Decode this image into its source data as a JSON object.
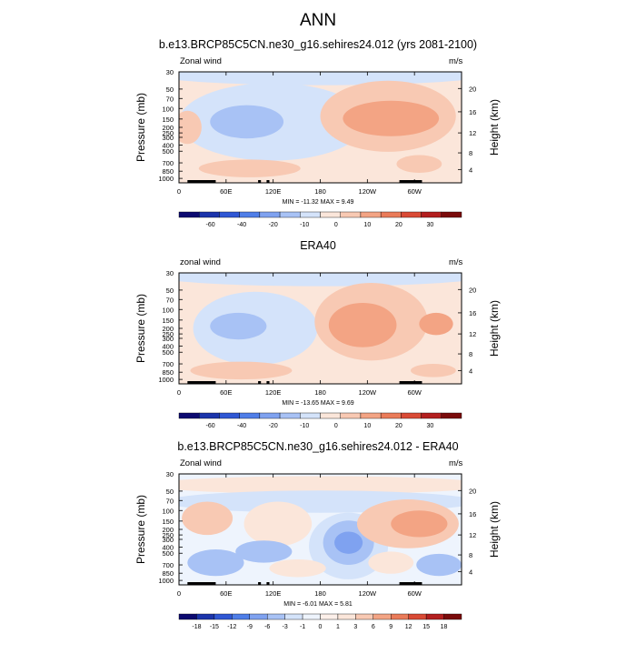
{
  "main_title": "ANN",
  "chart_data": [
    {
      "type": "heatmap",
      "title": "b.e13.BRCP85C5CN.ne30_g16.sehires24.012 (yrs 2081-2100)",
      "left_label": "Zonal wind",
      "right_label": "m/s",
      "ylabel": "Pressure (mb)",
      "ylabel_right": "Height (km)",
      "y_ticks": [
        "30",
        "50",
        "70",
        "100",
        "150",
        "200",
        "250",
        "300",
        "400",
        "500",
        "700",
        "850",
        "1000"
      ],
      "y_ticks_right": [
        "20",
        "16",
        "12",
        "8",
        "4"
      ],
      "x_ticks": [
        "0",
        "60E",
        "120E",
        "180",
        "120W",
        "60W"
      ],
      "min": "-11.32",
      "max": "9.49",
      "minmax_text": "MIN = -11.32  MAX =   9.49",
      "colorbar_labels": [
        "-60",
        "-40",
        "-20",
        "-10",
        "0",
        "10",
        "20",
        "30"
      ],
      "colors": [
        "#0c0a70",
        "#1b34ab",
        "#2f57d4",
        "#4f7ee8",
        "#7fa2f0",
        "#a8c2f5",
        "#d4e3fa",
        "#fbe6da",
        "#f8c9b3",
        "#f3a484",
        "#ea7b59",
        "#d94a35",
        "#b31f1f",
        "#7a0b0b"
      ]
    },
    {
      "type": "heatmap",
      "title": "ERA40",
      "left_label": "zonal wind",
      "right_label": "m/s",
      "ylabel": "Pressure (mb)",
      "ylabel_right": "Height (km)",
      "y_ticks": [
        "30",
        "50",
        "70",
        "100",
        "150",
        "200",
        "250",
        "300",
        "400",
        "500",
        "700",
        "850",
        "1000"
      ],
      "y_ticks_right": [
        "20",
        "16",
        "12",
        "8",
        "4"
      ],
      "x_ticks": [
        "0",
        "60E",
        "120E",
        "180",
        "120W",
        "60W"
      ],
      "min": "-13.65",
      "max": "9.69",
      "minmax_text": "MIN = -13.65  MAX =   9.69",
      "colorbar_labels": [
        "-60",
        "-40",
        "-20",
        "-10",
        "0",
        "10",
        "20",
        "30"
      ],
      "colors": [
        "#0c0a70",
        "#1b34ab",
        "#2f57d4",
        "#4f7ee8",
        "#7fa2f0",
        "#a8c2f5",
        "#d4e3fa",
        "#fbe6da",
        "#f8c9b3",
        "#f3a484",
        "#ea7b59",
        "#d94a35",
        "#b31f1f",
        "#7a0b0b"
      ]
    },
    {
      "type": "heatmap",
      "title": "b.e13.BRCP85C5CN.ne30_g16.sehires24.012 - ERA40",
      "left_label": "Zonal wind",
      "right_label": "m/s",
      "ylabel": "Pressure (mb)",
      "ylabel_right": "Height (km)",
      "y_ticks": [
        "30",
        "50",
        "70",
        "100",
        "150",
        "200",
        "250",
        "300",
        "400",
        "500",
        "700",
        "850",
        "1000"
      ],
      "y_ticks_right": [
        "20",
        "16",
        "12",
        "8",
        "4"
      ],
      "x_ticks": [
        "0",
        "60E",
        "120E",
        "180",
        "120W",
        "60W"
      ],
      "min": "-6.01",
      "max": "5.81",
      "minmax_text": "MIN = -6.01  MAX =   5.81",
      "colorbar_labels": [
        "-18",
        "-15",
        "-12",
        "-9",
        "-6",
        "-3",
        "-1",
        "0",
        "1",
        "3",
        "6",
        "9",
        "12",
        "15",
        "18"
      ],
      "colors": [
        "#0c0a70",
        "#1b34ab",
        "#2f57d4",
        "#4f7ee8",
        "#7fa2f0",
        "#a8c2f5",
        "#d4e3fa",
        "#eef4fd",
        "#fdf0ea",
        "#fbe6da",
        "#f8c9b3",
        "#f3a484",
        "#ea7b59",
        "#d94a35",
        "#b31f1f",
        "#7a0b0b"
      ]
    }
  ]
}
